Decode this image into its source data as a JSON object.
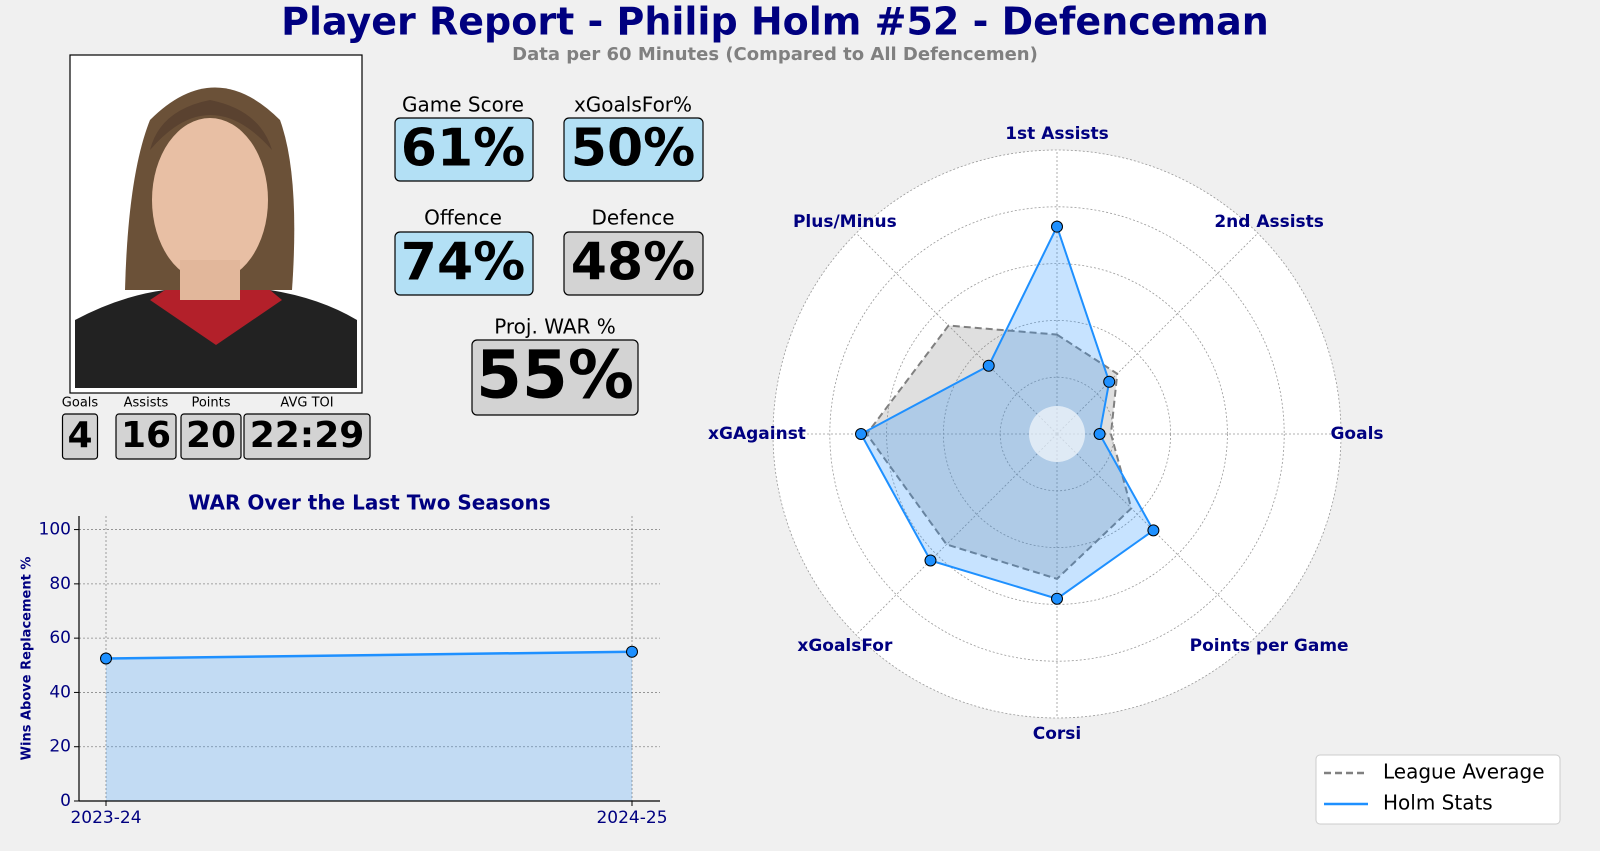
{
  "header": {
    "title": "Player Report - Philip Holm #52 - Defenceman",
    "subtitle": "Data per 60 Minutes (Compared to All Defencemen)"
  },
  "player_stats": [
    {
      "label": "Goals",
      "value": "4"
    },
    {
      "label": "Assists",
      "value": "16"
    },
    {
      "label": "Points",
      "value": "20"
    },
    {
      "label": "AVG TOI",
      "value": "22:29"
    }
  ],
  "cards": [
    {
      "label": "Game Score",
      "value": "61%",
      "color": "#b3e0f5"
    },
    {
      "label": "xGoalsFor%",
      "value": "50%",
      "color": "#b3e0f5"
    },
    {
      "label": "Offence",
      "value": "74%",
      "color": "#b3e0f5"
    },
    {
      "label": "Defence",
      "value": "48%",
      "color": "#d3d3d3"
    },
    {
      "label": "Proj. WAR %",
      "value": "55%",
      "color": "#d3d3d3"
    }
  ],
  "chart_data": [
    {
      "type": "line",
      "title": "WAR Over the Last Two Seasons",
      "ylabel": "Wins Above Replacement %",
      "categories": [
        "2023-24",
        "2024-25"
      ],
      "values": [
        52.5,
        55.0
      ],
      "color": "#1e90ff",
      "fill": true,
      "ylim": [
        0,
        105
      ],
      "yticks": [
        0,
        20,
        40,
        60,
        80,
        100
      ],
      "grid": true
    },
    {
      "type": "radar",
      "categories": [
        "1st Assists",
        "2nd Assists",
        "Goals",
        "Points per Game",
        "Corsi",
        "xGoalsFor",
        "xGAgainst",
        "Plus/Minus"
      ],
      "series": [
        {
          "name": "League Average",
          "color": "#808080",
          "linestyle": "dashed",
          "markers": false,
          "values": [
            35,
            30,
            19,
            37,
            51,
            55,
            67,
            54
          ]
        },
        {
          "name": "Holm Stats",
          "color": "#1e90ff",
          "linestyle": "solid",
          "markers": true,
          "values": [
            73,
            26,
            15,
            48,
            58,
            63,
            69,
            34
          ]
        }
      ],
      "rlim": [
        0,
        100
      ],
      "rticks": [
        20,
        40,
        60,
        80,
        100
      ],
      "grid": true,
      "legend": "lower right"
    }
  ]
}
